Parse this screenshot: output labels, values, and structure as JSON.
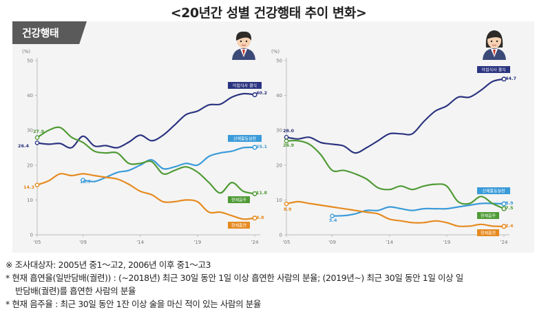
{
  "page_title": "<20년간 성별 건강행태 추이 변화>",
  "section_tab": "건강행태",
  "colors": {
    "breakfast_skip": "#2b3480",
    "physical_activity": "#3a9bd9",
    "drinking": "#4f9a35",
    "smoking": "#e68a1f",
    "panel_bg": "#f4f4f4",
    "tab_bg": "#5a5a5a"
  },
  "chart_data": [
    {
      "type": "line",
      "panel": "male",
      "avatar_icon": "boy-student-icon",
      "y_unit": "(%)",
      "ylim": [
        0,
        50
      ],
      "yticks": [
        "0",
        "10",
        "20",
        "30",
        "40",
        "50"
      ],
      "xlim": [
        2005,
        2024
      ],
      "xticks": [
        {
          "x": 2005,
          "label": "'05"
        },
        {
          "x": 2009,
          "label": "'09"
        },
        {
          "x": 2014,
          "label": "'14"
        },
        {
          "x": 2019,
          "label": "'19"
        },
        {
          "x": 2024,
          "label": "'24"
        }
      ],
      "x": [
        2005,
        2006,
        2007,
        2008,
        2009,
        2010,
        2011,
        2012,
        2013,
        2014,
        2015,
        2016,
        2017,
        2018,
        2019,
        2020,
        2021,
        2022,
        2023,
        2024
      ],
      "series": [
        {
          "key": "breakfast_skip",
          "name": "아침식사 결식",
          "end_label": "40.2",
          "start_label": "26.4",
          "values": [
            26.4,
            26.0,
            26.2,
            25.0,
            28.3,
            25.5,
            25.6,
            25.0,
            26.6,
            28.6,
            27.0,
            28.6,
            31.5,
            34.5,
            35.5,
            37.3,
            37.5,
            39.5,
            40.5,
            40.2
          ]
        },
        {
          "key": "physical_activity",
          "name": "신체활동실천",
          "end_label": "25.1",
          "start_label": "15.7",
          "start_x": 2009,
          "values": [
            null,
            null,
            null,
            null,
            15.7,
            15.3,
            16.5,
            17.9,
            18.5,
            20.0,
            21.5,
            19.0,
            19.5,
            20.5,
            20.0,
            22.5,
            23.5,
            24.0,
            25.0,
            25.1
          ]
        },
        {
          "key": "drinking",
          "name": "현재음주",
          "end_label": "11.8",
          "start_label": "27.9",
          "values": [
            27.9,
            30.0,
            30.8,
            28.0,
            26.5,
            24.0,
            23.5,
            23.5,
            20.5,
            20.5,
            21.0,
            17.5,
            18.5,
            19.5,
            18.0,
            15.0,
            12.0,
            15.0,
            12.5,
            11.8
          ]
        },
        {
          "key": "smoking",
          "name": "현재흡연",
          "end_label": "4.8",
          "start_label": "14.3",
          "values": [
            14.3,
            15.5,
            17.5,
            17.0,
            17.5,
            17.0,
            16.5,
            16.0,
            14.5,
            12.5,
            11.5,
            9.5,
            9.5,
            10.0,
            9.5,
            6.5,
            6.5,
            5.5,
            4.5,
            4.8
          ]
        }
      ]
    },
    {
      "type": "line",
      "panel": "female",
      "avatar_icon": "girl-student-icon",
      "y_unit": "(%)",
      "ylim": [
        0,
        50
      ],
      "yticks": [
        "0",
        "10",
        "20",
        "30",
        "40",
        "50"
      ],
      "xlim": [
        2005,
        2024
      ],
      "xticks": [
        {
          "x": 2005,
          "label": "'05"
        },
        {
          "x": 2009,
          "label": "'09"
        },
        {
          "x": 2014,
          "label": "'14"
        },
        {
          "x": 2019,
          "label": "'19"
        },
        {
          "x": 2024,
          "label": "'24"
        }
      ],
      "x": [
        2005,
        2006,
        2007,
        2008,
        2009,
        2010,
        2011,
        2012,
        2013,
        2014,
        2015,
        2016,
        2017,
        2018,
        2019,
        2020,
        2021,
        2022,
        2023,
        2024
      ],
      "series": [
        {
          "key": "breakfast_skip",
          "name": "아침식사 결식",
          "end_label": "44.7",
          "start_label": "28.0",
          "values": [
            28.0,
            27.5,
            28.0,
            26.5,
            26.0,
            25.5,
            23.5,
            25.0,
            27.0,
            29.0,
            29.0,
            29.0,
            32.5,
            35.5,
            37.0,
            39.5,
            39.5,
            41.5,
            44.0,
            44.7
          ]
        },
        {
          "key": "physical_activity",
          "name": "신체활동실천",
          "end_label": "8.9",
          "start_label": "5.4",
          "start_x": 2009,
          "values": [
            null,
            null,
            null,
            null,
            5.4,
            5.5,
            6.0,
            7.0,
            7.0,
            8.0,
            7.5,
            7.0,
            7.5,
            7.5,
            7.5,
            8.0,
            8.5,
            9.0,
            9.0,
            8.9
          ]
        },
        {
          "key": "drinking",
          "name": "현재음주",
          "end_label": "7.5",
          "start_label": "26.9",
          "values": [
            26.9,
            27.0,
            26.0,
            23.0,
            18.5,
            18.5,
            17.5,
            16.0,
            13.5,
            13.0,
            14.0,
            13.0,
            14.0,
            14.5,
            14.0,
            9.5,
            9.0,
            11.0,
            9.0,
            7.5
          ]
        },
        {
          "key": "smoking",
          "name": "현재흡연",
          "end_label": "2.4",
          "start_label": "8.9",
          "values": [
            8.9,
            9.5,
            9.0,
            8.5,
            8.0,
            7.5,
            7.0,
            6.5,
            6.0,
            4.5,
            4.0,
            3.5,
            3.5,
            4.0,
            3.5,
            2.5,
            2.5,
            3.0,
            2.5,
            2.4
          ]
        }
      ]
    }
  ],
  "notes": [
    "※ 조사대상자: 2005년 중1～고2, 2006년 이후 중1～고3",
    "* 현재 흡연율(일반담배(궐련)) : (~2018년) 최근 30일 동안 1일 이상 흡연한 사람의 분율; (2019년~) 최근 30일 동안 1일 이상 일",
    "반담배(궐련)를 흡연한 사람의 분율",
    "* 현재 음주율 : 최근 30일 동안 1잔 이상 술을 마신 적이 있는 사람의 분율"
  ]
}
